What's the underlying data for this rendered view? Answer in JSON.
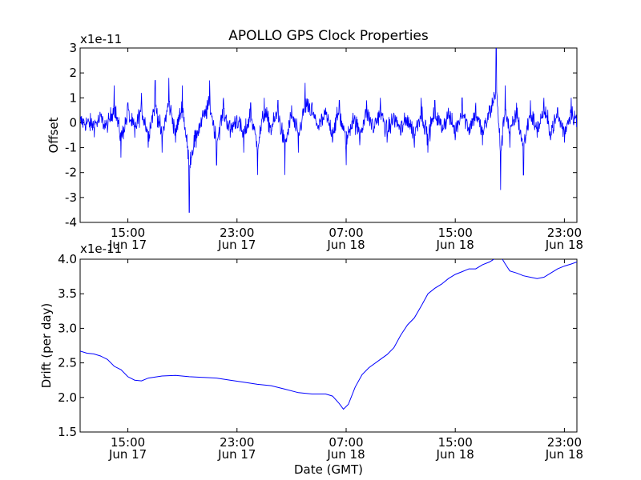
{
  "figure": {
    "title": "APOLLO GPS Clock Properties",
    "xlabel": "Date (GMT)"
  },
  "chart_data": [
    {
      "type": "line",
      "title": "APOLLO GPS Clock Properties",
      "xlabel": "",
      "ylabel": "Offset",
      "y_multiplier": "x1e-11",
      "xlim": [
        "2011-06-17T11:30",
        "2011-06-18T23:55"
      ],
      "ylim": [
        -4,
        3
      ],
      "yticks": [
        "-4",
        "-3",
        "-2",
        "-1",
        "0",
        "1",
        "2",
        "3"
      ],
      "xticks": [
        {
          "time": "15:00",
          "date": "Jun 17",
          "x": "2011-06-17T15:00"
        },
        {
          "time": "23:00",
          "date": "Jun 17",
          "x": "2011-06-17T23:00"
        },
        {
          "time": "07:00",
          "date": "Jun 18",
          "x": "2011-06-18T07:00"
        },
        {
          "time": "15:00",
          "date": "Jun 18",
          "x": "2011-06-18T15:00"
        },
        {
          "time": "23:00",
          "date": "Jun 18",
          "x": "2011-06-18T23:00"
        }
      ],
      "grid": false,
      "color": "#0000ff",
      "series": [
        {
          "points": [
            [
              "2011-06-17T11:30",
              0.1
            ],
            [
              "2011-06-17T12:30",
              -0.2
            ],
            [
              "2011-06-17T13:00",
              0.3
            ],
            [
              "2011-06-17T13:30",
              -0.4
            ],
            [
              "2011-06-17T14:00",
              1.5
            ],
            [
              "2011-06-17T14:30",
              -1.4
            ],
            [
              "2011-06-17T15:00",
              0.8
            ],
            [
              "2011-06-17T15:30",
              -0.6
            ],
            [
              "2011-06-17T16:00",
              1.2
            ],
            [
              "2011-06-17T16:30",
              -1.0
            ],
            [
              "2011-06-17T17:00",
              1.7
            ],
            [
              "2011-06-17T17:30",
              -1.2
            ],
            [
              "2011-06-17T18:00",
              1.8
            ],
            [
              "2011-06-17T18:30",
              -0.8
            ],
            [
              "2011-06-17T19:00",
              1.5
            ],
            [
              "2011-06-17T19:30",
              -3.6
            ],
            [
              "2011-06-17T20:00",
              -1.0
            ],
            [
              "2011-06-17T20:30",
              0.3
            ],
            [
              "2011-06-17T21:00",
              1.7
            ],
            [
              "2011-06-17T21:30",
              -1.7
            ],
            [
              "2011-06-17T22:00",
              1.0
            ],
            [
              "2011-06-17T22:30",
              -0.6
            ],
            [
              "2011-06-17T23:00",
              0.3
            ],
            [
              "2011-06-17T23:30",
              -1.2
            ],
            [
              "2011-06-18T00:00",
              0.8
            ],
            [
              "2011-06-18T00:30",
              -2.1
            ],
            [
              "2011-06-18T01:00",
              1.0
            ],
            [
              "2011-06-18T01:30",
              -0.5
            ],
            [
              "2011-06-18T02:00",
              0.9
            ],
            [
              "2011-06-18T02:30",
              -2.1
            ],
            [
              "2011-06-18T03:00",
              0.7
            ],
            [
              "2011-06-18T03:30",
              -1.2
            ],
            [
              "2011-06-18T04:00",
              1.6
            ],
            [
              "2011-06-18T04:30",
              0.8
            ],
            [
              "2011-06-18T05:00",
              -0.3
            ],
            [
              "2011-06-18T05:30",
              0.6
            ],
            [
              "2011-06-18T06:00",
              -0.8
            ],
            [
              "2011-06-18T06:30",
              0.9
            ],
            [
              "2011-06-18T07:00",
              -1.7
            ],
            [
              "2011-06-18T07:30",
              0.4
            ],
            [
              "2011-06-18T08:00",
              -0.9
            ],
            [
              "2011-06-18T08:30",
              0.9
            ],
            [
              "2011-06-18T09:00",
              -0.4
            ],
            [
              "2011-06-18T09:30",
              1.0
            ],
            [
              "2011-06-18T10:00",
              -0.8
            ],
            [
              "2011-06-18T10:30",
              0.4
            ],
            [
              "2011-06-18T11:00",
              -0.5
            ],
            [
              "2011-06-18T11:30",
              0.3
            ],
            [
              "2011-06-18T12:00",
              -1.0
            ],
            [
              "2011-06-18T12:30",
              1.0
            ],
            [
              "2011-06-18T13:00",
              -1.2
            ],
            [
              "2011-06-18T13:30",
              0.9
            ],
            [
              "2011-06-18T14:00",
              -0.4
            ],
            [
              "2011-06-18T14:30",
              0.6
            ],
            [
              "2011-06-18T15:00",
              -0.7
            ],
            [
              "2011-06-18T15:30",
              1.0
            ],
            [
              "2011-06-18T16:00",
              -0.5
            ],
            [
              "2011-06-18T16:30",
              0.8
            ],
            [
              "2011-06-18T17:00",
              -0.9
            ],
            [
              "2011-06-18T17:30",
              0.7
            ],
            [
              "2011-06-18T18:00",
              3.0
            ],
            [
              "2011-06-18T18:20",
              -2.7
            ],
            [
              "2011-06-18T18:40",
              1.5
            ],
            [
              "2011-06-18T19:00",
              -1.0
            ],
            [
              "2011-06-18T19:30",
              0.8
            ],
            [
              "2011-06-18T20:00",
              -2.1
            ],
            [
              "2011-06-18T20:30",
              0.9
            ],
            [
              "2011-06-18T21:00",
              -0.6
            ],
            [
              "2011-06-18T21:30",
              1.0
            ],
            [
              "2011-06-18T22:00",
              -0.7
            ],
            [
              "2011-06-18T22:30",
              0.6
            ],
            [
              "2011-06-18T23:00",
              -0.8
            ],
            [
              "2011-06-18T23:30",
              1.0
            ],
            [
              "2011-06-18T23:55",
              0.2
            ]
          ]
        }
      ]
    },
    {
      "type": "line",
      "title": "",
      "xlabel": "Date (GMT)",
      "ylabel": "Drift (per day)",
      "y_multiplier": "x1e-11",
      "xlim": [
        "2011-06-17T11:30",
        "2011-06-18T23:55"
      ],
      "ylim": [
        1.5,
        4.0
      ],
      "yticks": [
        "1.5",
        "2.0",
        "2.5",
        "3.0",
        "3.5",
        "4.0"
      ],
      "xticks": [
        {
          "time": "15:00",
          "date": "Jun 17",
          "x": "2011-06-17T15:00"
        },
        {
          "time": "23:00",
          "date": "Jun 17",
          "x": "2011-06-17T23:00"
        },
        {
          "time": "07:00",
          "date": "Jun 18",
          "x": "2011-06-18T07:00"
        },
        {
          "time": "15:00",
          "date": "Jun 18",
          "x": "2011-06-18T15:00"
        },
        {
          "time": "23:00",
          "date": "Jun 18",
          "x": "2011-06-18T23:00"
        }
      ],
      "grid": false,
      "color": "#0000ff",
      "series": [
        {
          "points": [
            [
              "2011-06-17T11:30",
              2.67
            ],
            [
              "2011-06-17T12:00",
              2.64
            ],
            [
              "2011-06-17T12:30",
              2.63
            ],
            [
              "2011-06-17T13:00",
              2.6
            ],
            [
              "2011-06-17T13:30",
              2.55
            ],
            [
              "2011-06-17T14:00",
              2.45
            ],
            [
              "2011-06-17T14:30",
              2.4
            ],
            [
              "2011-06-17T15:00",
              2.3
            ],
            [
              "2011-06-17T15:30",
              2.25
            ],
            [
              "2011-06-17T16:00",
              2.24
            ],
            [
              "2011-06-17T16:30",
              2.28
            ],
            [
              "2011-06-17T17:30",
              2.31
            ],
            [
              "2011-06-17T18:30",
              2.32
            ],
            [
              "2011-06-17T19:30",
              2.3
            ],
            [
              "2011-06-17T20:30",
              2.29
            ],
            [
              "2011-06-17T21:30",
              2.28
            ],
            [
              "2011-06-17T22:30",
              2.25
            ],
            [
              "2011-06-17T23:30",
              2.22
            ],
            [
              "2011-06-18T00:30",
              2.19
            ],
            [
              "2011-06-18T01:30",
              2.17
            ],
            [
              "2011-06-18T02:30",
              2.12
            ],
            [
              "2011-06-18T03:30",
              2.07
            ],
            [
              "2011-06-18T04:30",
              2.05
            ],
            [
              "2011-06-18T05:30",
              2.05
            ],
            [
              "2011-06-18T06:00",
              2.02
            ],
            [
              "2011-06-18T06:30",
              1.91
            ],
            [
              "2011-06-18T06:48",
              1.83
            ],
            [
              "2011-06-18T07:10",
              1.9
            ],
            [
              "2011-06-18T07:40",
              2.15
            ],
            [
              "2011-06-18T08:10",
              2.33
            ],
            [
              "2011-06-18T08:40",
              2.43
            ],
            [
              "2011-06-18T09:30",
              2.55
            ],
            [
              "2011-06-18T10:00",
              2.62
            ],
            [
              "2011-06-18T10:30",
              2.72
            ],
            [
              "2011-06-18T11:00",
              2.9
            ],
            [
              "2011-06-18T11:30",
              3.05
            ],
            [
              "2011-06-18T12:00",
              3.15
            ],
            [
              "2011-06-18T12:30",
              3.32
            ],
            [
              "2011-06-18T13:00",
              3.5
            ],
            [
              "2011-06-18T13:30",
              3.58
            ],
            [
              "2011-06-18T14:00",
              3.64
            ],
            [
              "2011-06-18T14:30",
              3.72
            ],
            [
              "2011-06-18T15:00",
              3.78
            ],
            [
              "2011-06-18T15:30",
              3.82
            ],
            [
              "2011-06-18T16:00",
              3.86
            ],
            [
              "2011-06-18T16:30",
              3.86
            ],
            [
              "2011-06-18T17:00",
              3.92
            ],
            [
              "2011-06-18T17:30",
              3.96
            ],
            [
              "2011-06-18T18:00",
              4.02
            ],
            [
              "2011-06-18T18:20",
              4.04
            ],
            [
              "2011-06-18T18:40",
              3.93
            ],
            [
              "2011-06-18T19:00",
              3.83
            ],
            [
              "2011-06-18T19:30",
              3.8
            ],
            [
              "2011-06-18T20:00",
              3.76
            ],
            [
              "2011-06-18T20:30",
              3.74
            ],
            [
              "2011-06-18T21:00",
              3.72
            ],
            [
              "2011-06-18T21:30",
              3.74
            ],
            [
              "2011-06-18T22:00",
              3.8
            ],
            [
              "2011-06-18T22:30",
              3.86
            ],
            [
              "2011-06-18T23:00",
              3.9
            ],
            [
              "2011-06-18T23:30",
              3.93
            ],
            [
              "2011-06-18T23:55",
              3.96
            ]
          ]
        }
      ]
    }
  ]
}
